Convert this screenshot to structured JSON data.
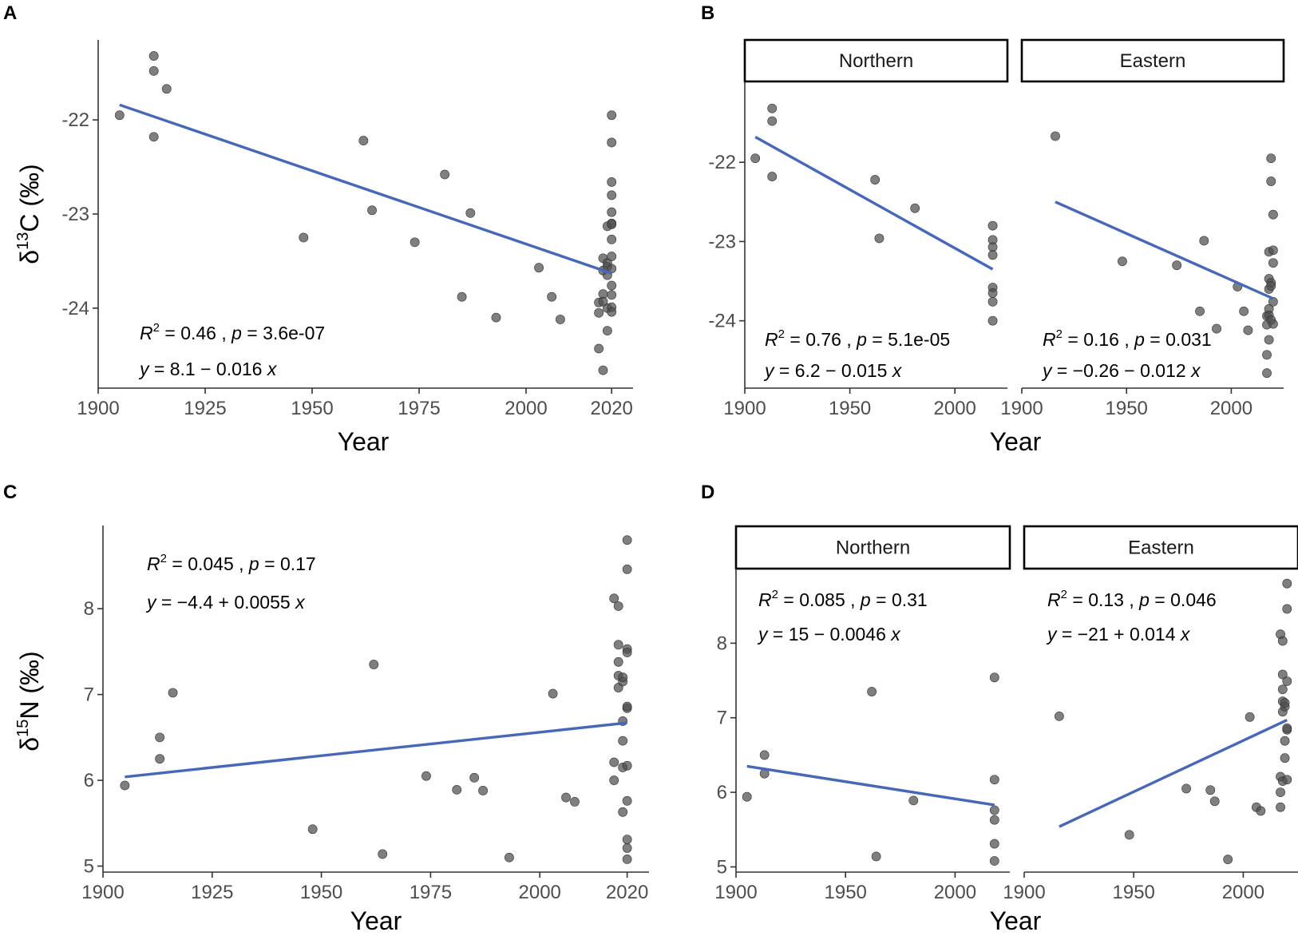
{
  "chart_data": [
    {
      "panel": "A",
      "type": "scatter",
      "xlabel": "Year",
      "ylabel": "δ13C (‰)",
      "ylabel_base": "δ",
      "ylabel_sup": "13",
      "ylabel_rest": "C (‰)",
      "xlim": [
        1900,
        2025
      ],
      "ylim": [
        -24.85,
        -21.15
      ],
      "xticks": [
        1900,
        1925,
        1950,
        1975,
        2000,
        2020
      ],
      "yticks": [
        -24,
        -23,
        -22
      ],
      "ytick_labels": [
        "-24",
        "-23",
        "-22"
      ],
      "points": {
        "x": [
          1905,
          1913,
          1913,
          1913,
          1916,
          1948,
          1962,
          1964,
          1974,
          1981,
          1985,
          1987,
          1993,
          2003,
          2006,
          2008,
          2017,
          2017,
          2017,
          2018,
          2018,
          2018,
          2018,
          2018,
          2019,
          2019,
          2019,
          2019,
          2019,
          2019,
          2020,
          2020,
          2020,
          2020,
          2020,
          2020,
          2020,
          2020,
          2020,
          2020,
          2020,
          2020,
          2020,
          2020
        ],
        "y": [
          -21.95,
          -21.32,
          -21.48,
          -22.18,
          -21.67,
          -23.25,
          -22.22,
          -22.96,
          -23.3,
          -22.58,
          -23.88,
          -22.99,
          -24.1,
          -23.57,
          -23.88,
          -24.12,
          -24.43,
          -23.94,
          -24.05,
          -24.66,
          -23.85,
          -23.93,
          -23.6,
          -23.47,
          -24.24,
          -23.13,
          -23.52,
          -23.56,
          -23.65,
          -24.0,
          -21.95,
          -22.24,
          -22.98,
          -23.1,
          -23.27,
          -23.45,
          -23.76,
          -23.86,
          -23.99,
          -24.04,
          -22.66,
          -22.8,
          -23.11,
          -23.58
        ]
      },
      "fit": {
        "x": [
          1905,
          2020
        ],
        "y": [
          -21.84,
          -23.63
        ]
      },
      "annotation": {
        "r2": "0.46",
        "p": "3.6e-07",
        "equation": "8.1 − 0.016"
      }
    },
    {
      "panel": "B",
      "type": "scatter",
      "xlabel": "Year",
      "ylabel": "",
      "ylim": [
        -24.85,
        -20.98
      ],
      "yticks": [
        -24,
        -23,
        -22
      ],
      "ytick_labels": [
        "-24",
        "-23",
        "-22"
      ],
      "facets": [
        {
          "strip": "Northern",
          "xlim": [
            1900,
            2025
          ],
          "xticks": [
            1900,
            1950,
            2000
          ],
          "points": {
            "x": [
              1905,
              1913,
              1913,
              1913,
              1962,
              1964,
              1981,
              2018,
              2018,
              2018,
              2018,
              2018,
              2018,
              2018,
              2018
            ],
            "y": [
              -21.95,
              -21.32,
              -21.48,
              -22.18,
              -22.22,
              -22.96,
              -22.58,
              -22.8,
              -22.98,
              -23.07,
              -23.17,
              -23.58,
              -23.76,
              -24.0,
              -23.65
            ]
          },
          "fit": {
            "x": [
              1905,
              2018
            ],
            "y": [
              -21.68,
              -23.35
            ]
          },
          "annotation": {
            "r2": "0.76",
            "p": "5.1e-05",
            "equation": "6.2 − 0.015"
          }
        },
        {
          "strip": "Eastern",
          "xlim": [
            1900,
            2025
          ],
          "xticks": [
            1900,
            1950,
            2000
          ],
          "points": {
            "x": [
              1916,
              1948,
              1974,
              1985,
              1987,
              1993,
              2003,
              2006,
              2008,
              2017,
              2017,
              2017,
              2017,
              2018,
              2018,
              2018,
              2018,
              2018,
              2018,
              2019,
              2019,
              2019,
              2019,
              2019,
              2020,
              2020,
              2020,
              2020,
              2020
            ],
            "y": [
              -21.67,
              -23.25,
              -23.3,
              -23.88,
              -22.99,
              -24.1,
              -23.57,
              -23.88,
              -24.12,
              -24.43,
              -23.94,
              -24.05,
              -24.66,
              -23.85,
              -23.93,
              -23.6,
              -23.47,
              -24.24,
              -23.13,
              -21.95,
              -22.24,
              -23.52,
              -23.56,
              -23.99,
              -22.66,
              -23.11,
              -23.27,
              -23.76,
              -24.04
            ]
          },
          "fit": {
            "x": [
              1916,
              2020
            ],
            "y": [
              -22.5,
              -23.72
            ]
          },
          "annotation": {
            "r2": "0.16",
            "p": "0.031",
            "equation": "−0.26 − 0.012"
          }
        }
      ]
    },
    {
      "panel": "C",
      "type": "scatter",
      "xlabel": "Year",
      "ylabel": "δ15N (‰)",
      "ylabel_base": "δ",
      "ylabel_sup": "15",
      "ylabel_rest": "N (‰)",
      "xlim": [
        1900,
        2025
      ],
      "ylim": [
        4.93,
        8.97
      ],
      "xticks": [
        1900,
        1925,
        1950,
        1975,
        2000,
        2020
      ],
      "yticks": [
        5,
        6,
        7,
        8
      ],
      "ytick_labels": [
        "5",
        "6",
        "7",
        "8"
      ],
      "points": {
        "x": [
          1905,
          1913,
          1913,
          1916,
          1948,
          1962,
          1964,
          1974,
          1981,
          1985,
          1987,
          1993,
          2003,
          2006,
          2008,
          2017,
          2017,
          2017,
          2018,
          2018,
          2018,
          2018,
          2018,
          2019,
          2019,
          2019,
          2019,
          2019,
          2019,
          2020,
          2020,
          2020,
          2020,
          2020,
          2020,
          2020,
          2020,
          2020,
          2020,
          2020
        ],
        "y": [
          5.94,
          6.5,
          6.25,
          7.02,
          5.43,
          7.35,
          5.14,
          6.05,
          5.89,
          6.03,
          5.88,
          5.1,
          7.01,
          5.8,
          5.75,
          8.12,
          6.21,
          6.0,
          8.03,
          7.58,
          7.38,
          7.22,
          7.08,
          6.15,
          6.69,
          6.46,
          7.15,
          7.2,
          5.63,
          8.8,
          8.46,
          7.53,
          7.49,
          6.84,
          6.86,
          6.17,
          5.76,
          5.31,
          5.21,
          5.08
        ]
      },
      "fit": {
        "x": [
          1905,
          2020
        ],
        "y": [
          6.04,
          6.67
        ]
      },
      "annotation": {
        "r2": "0.045",
        "p": "0.17",
        "equation": "−4.4 + 0.0055"
      }
    },
    {
      "panel": "D",
      "type": "scatter",
      "xlabel": "Year",
      "ylabel": "",
      "ylim": [
        4.93,
        9.0
      ],
      "yticks": [
        5,
        6,
        7,
        8
      ],
      "ytick_labels": [
        "5",
        "6",
        "7",
        "8"
      ],
      "facets": [
        {
          "strip": "Northern",
          "xlim": [
            1900,
            2025
          ],
          "xticks": [
            1900,
            1950,
            2000
          ],
          "points": {
            "x": [
              1905,
              1913,
              1913,
              1962,
              1964,
              1981,
              2018,
              2018,
              2018,
              2018,
              2018,
              2018
            ],
            "y": [
              5.94,
              6.5,
              6.25,
              7.35,
              5.14,
              5.89,
              7.54,
              6.17,
              5.76,
              5.63,
              5.31,
              5.08
            ]
          },
          "fit": {
            "x": [
              1905,
              2018
            ],
            "y": [
              6.35,
              5.83
            ]
          },
          "annotation": {
            "r2": "0.085",
            "p": "0.31",
            "equation": "15 − 0.0046"
          }
        },
        {
          "strip": "Eastern",
          "xlim": [
            1900,
            2025
          ],
          "xticks": [
            1900,
            1950,
            2000
          ],
          "points": {
            "x": [
              1916,
              1948,
              1974,
              1985,
              1987,
              1993,
              2003,
              2006,
              2008,
              2017,
              2017,
              2017,
              2017,
              2018,
              2018,
              2018,
              2018,
              2018,
              2018,
              2019,
              2019,
              2019,
              2019,
              2020,
              2020,
              2020,
              2020,
              2020,
              2020
            ],
            "y": [
              7.02,
              5.43,
              6.05,
              6.03,
              5.88,
              5.1,
              7.01,
              5.8,
              5.75,
              8.12,
              6.21,
              6.0,
              5.8,
              8.03,
              7.58,
              7.38,
              7.22,
              7.08,
              6.15,
              7.15,
              7.2,
              6.69,
              6.46,
              8.8,
              8.46,
              7.49,
              6.84,
              6.86,
              6.17
            ]
          },
          "fit": {
            "x": [
              1916,
              2020
            ],
            "y": [
              5.54,
              6.97
            ]
          },
          "annotation": {
            "r2": "0.13",
            "p": "0.046",
            "equation": "−21 + 0.014"
          }
        }
      ]
    }
  ]
}
